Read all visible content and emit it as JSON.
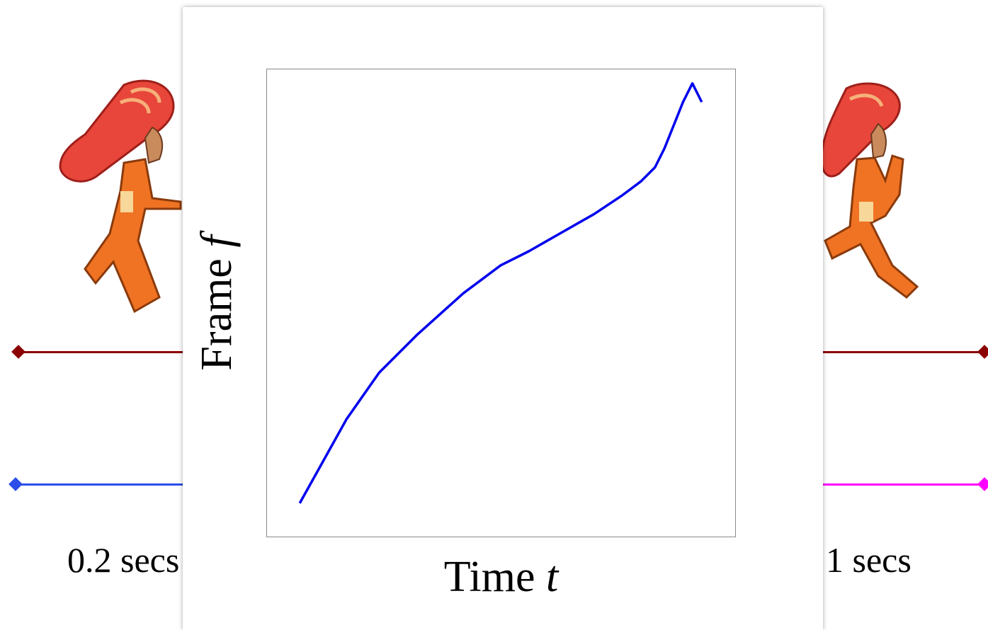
{
  "background": {
    "left_duration_label": "0.2 secs",
    "right_duration_label": "1 secs",
    "left_runner_icon": "running-girl-icon",
    "right_runner_icon": "running-girl-icon",
    "timeline_colors": {
      "top": "#8b0000",
      "bottom_left": "#2b4ee8",
      "bottom_right": "#ff00ff"
    }
  },
  "chart_data": {
    "type": "line",
    "title": "",
    "xlabel_main": "Time",
    "xlabel_var": "t",
    "ylabel_main": "Frame",
    "ylabel_var": "f",
    "xlim": [
      0,
      1
    ],
    "ylim": [
      0,
      1
    ],
    "grid": false,
    "ticks": false,
    "series": [
      {
        "color": "#0000ee",
        "x": [
          0.07,
          0.12,
          0.17,
          0.24,
          0.32,
          0.42,
          0.5,
          0.56,
          0.63,
          0.7,
          0.76,
          0.8,
          0.83,
          0.85,
          0.87,
          0.89,
          0.91,
          0.93
        ],
        "y": [
          0.07,
          0.16,
          0.25,
          0.35,
          0.43,
          0.52,
          0.58,
          0.61,
          0.65,
          0.69,
          0.73,
          0.76,
          0.79,
          0.83,
          0.88,
          0.93,
          0.97,
          0.93
        ]
      }
    ]
  }
}
